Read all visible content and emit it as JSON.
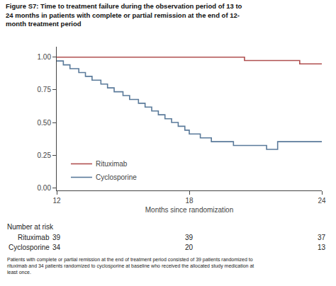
{
  "chart_data": {
    "type": "step",
    "title": "Figure S7: Time to treatment failure during the observation period of 13 to\n24 months in patients with complete or partial remission at the end of 12-\nmonth treatment period",
    "xlabel": "Months since randomization",
    "xlim": [
      12,
      24
    ],
    "ylim": [
      -0.02,
      1.08
    ],
    "xticks": [
      12,
      18,
      24
    ],
    "yticks": [
      {
        "value": 0.0,
        "label": "0.00"
      },
      0.25,
      {
        "value": 0.5,
        "label": "0.50"
      },
      0.75,
      {
        "value": 1.0,
        "label": "1.00"
      }
    ],
    "grid": false,
    "legend": "lower left",
    "series": [
      {
        "name": "Rituximab",
        "color": "#b05050",
        "x": [
          12,
          20.5,
          20.5,
          23.0,
          23.0,
          24
        ],
        "values": [
          1.0,
          1.0,
          0.974,
          0.974,
          0.949,
          0.949
        ]
      },
      {
        "name": "Cyclosporine",
        "color": "#5a7a9a",
        "x": [
          12.0,
          12.3,
          12.3,
          12.6,
          12.6,
          13.0,
          13.0,
          13.3,
          13.3,
          13.6,
          13.6,
          14.0,
          14.0,
          14.3,
          14.3,
          14.6,
          14.6,
          15.0,
          15.0,
          15.3,
          15.3,
          15.7,
          15.7,
          16.0,
          16.0,
          16.3,
          16.3,
          16.6,
          16.6,
          16.9,
          16.9,
          17.2,
          17.2,
          17.5,
          17.5,
          17.8,
          17.8,
          18.0,
          18.0,
          18.5,
          18.5,
          19.0,
          19.0,
          20.0,
          20.0,
          21.5,
          21.5,
          22.0,
          22.0,
          24.0
        ],
        "values": [
          0.971,
          0.971,
          0.941,
          0.941,
          0.912,
          0.912,
          0.882,
          0.882,
          0.853,
          0.853,
          0.824,
          0.824,
          0.794,
          0.794,
          0.765,
          0.765,
          0.735,
          0.735,
          0.706,
          0.706,
          0.676,
          0.676,
          0.647,
          0.647,
          0.618,
          0.618,
          0.588,
          0.588,
          0.559,
          0.559,
          0.529,
          0.529,
          0.5,
          0.5,
          0.471,
          0.471,
          0.441,
          0.441,
          0.412,
          0.412,
          0.382,
          0.382,
          0.353,
          0.353,
          0.324,
          0.324,
          0.294,
          0.294,
          0.353,
          0.353
        ]
      }
    ],
    "number_at_risk": {
      "header": "Number at risk",
      "x": [
        12,
        18,
        24
      ],
      "rows": [
        {
          "name": "Rituximab",
          "values": [
            39,
            39,
            37
          ]
        },
        {
          "name": "Cyclosporine",
          "values": [
            34,
            20,
            13
          ]
        }
      ]
    },
    "note": "Patients with complete or partial remission at the end of treatment period consisted of 39 patients randomized to\nrituximab and 34 patients randomized to cyclosporine at baseline who received the allocated study medication at\nleast once."
  }
}
